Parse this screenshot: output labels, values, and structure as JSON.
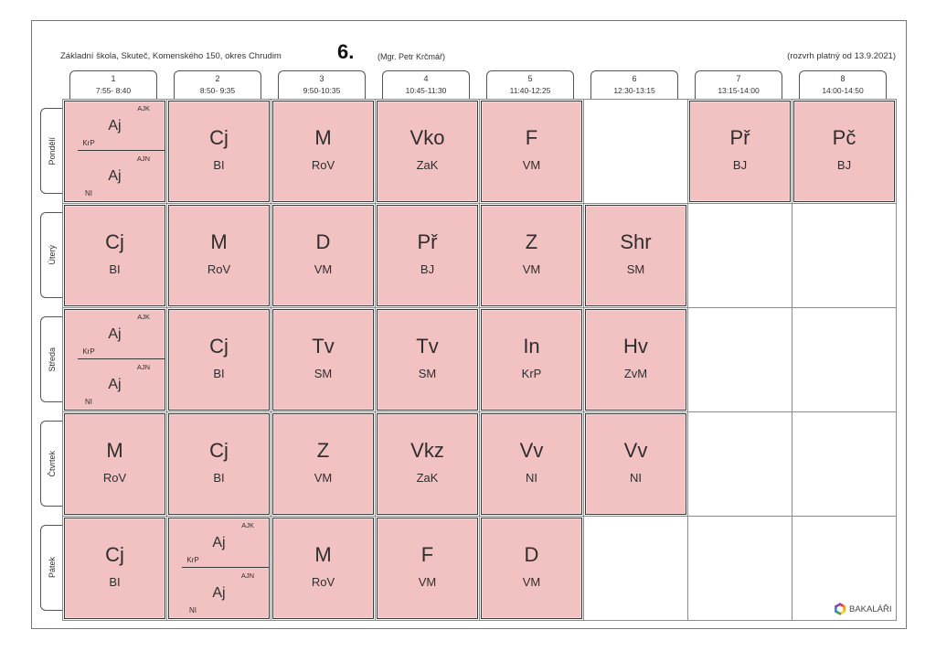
{
  "header": {
    "school": "Základní škola, Skuteč, Komenského 150, okres Chrudim",
    "class_name": "6.",
    "class_teacher": "(Mgr. Petr Krčmář)",
    "valid_from": "(rozvrh platný od 13.9.2021)"
  },
  "periods": [
    {
      "number": "1",
      "time": "7:55- 8:40"
    },
    {
      "number": "2",
      "time": "8:50- 9:35"
    },
    {
      "number": "3",
      "time": "9:50-10:35"
    },
    {
      "number": "4",
      "time": "10:45-11:30"
    },
    {
      "number": "5",
      "time": "11:40-12:25"
    },
    {
      "number": "6",
      "time": "12:30-13:15"
    },
    {
      "number": "7",
      "time": "13:15-14:00"
    },
    {
      "number": "8",
      "time": "14:00-14:50"
    }
  ],
  "days": [
    {
      "name": "Pondělí",
      "lessons": [
        {
          "split": [
            {
              "group": "AJK",
              "subject": "Aj",
              "teacher": "KrP"
            },
            {
              "group": "AJN",
              "subject": "Aj",
              "teacher": "NI"
            }
          ]
        },
        {
          "subject": "Cj",
          "teacher": "BI"
        },
        {
          "subject": "M",
          "teacher": "RoV"
        },
        {
          "subject": "Vko",
          "teacher": "ZaK"
        },
        {
          "subject": "F",
          "teacher": "VM"
        },
        null,
        {
          "subject": "Př",
          "teacher": "BJ"
        },
        {
          "subject": "Pč",
          "teacher": "BJ"
        }
      ]
    },
    {
      "name": "Úterý",
      "lessons": [
        {
          "subject": "Cj",
          "teacher": "BI"
        },
        {
          "subject": "M",
          "teacher": "RoV"
        },
        {
          "subject": "D",
          "teacher": "VM"
        },
        {
          "subject": "Př",
          "teacher": "BJ"
        },
        {
          "subject": "Z",
          "teacher": "VM"
        },
        {
          "subject": "Shr",
          "teacher": "SM"
        },
        null,
        null
      ]
    },
    {
      "name": "Středa",
      "lessons": [
        {
          "split": [
            {
              "group": "AJK",
              "subject": "Aj",
              "teacher": "KrP"
            },
            {
              "group": "AJN",
              "subject": "Aj",
              "teacher": "NI"
            }
          ]
        },
        {
          "subject": "Cj",
          "teacher": "BI"
        },
        {
          "subject": "Tv",
          "teacher": "SM"
        },
        {
          "subject": "Tv",
          "teacher": "SM"
        },
        {
          "subject": "In",
          "teacher": "KrP"
        },
        {
          "subject": "Hv",
          "teacher": "ZvM"
        },
        null,
        null
      ]
    },
    {
      "name": "Čtvrtek",
      "lessons": [
        {
          "subject": "M",
          "teacher": "RoV"
        },
        {
          "subject": "Cj",
          "teacher": "BI"
        },
        {
          "subject": "Z",
          "teacher": "VM"
        },
        {
          "subject": "Vkz",
          "teacher": "ZaK"
        },
        {
          "subject": "Vv",
          "teacher": "NI"
        },
        {
          "subject": "Vv",
          "teacher": "NI"
        },
        null,
        null
      ]
    },
    {
      "name": "Pátek",
      "lessons": [
        {
          "subject": "Cj",
          "teacher": "BI"
        },
        {
          "split": [
            {
              "group": "AJK",
              "subject": "Aj",
              "teacher": "KrP"
            },
            {
              "group": "AJN",
              "subject": "Aj",
              "teacher": "NI"
            }
          ]
        },
        {
          "subject": "M",
          "teacher": "RoV"
        },
        {
          "subject": "F",
          "teacher": "VM"
        },
        {
          "subject": "D",
          "teacher": "VM"
        },
        null,
        null,
        null
      ]
    }
  ],
  "logo": {
    "text": "BAKALÁŘI",
    "icon": "bakalari-hexagon-icon",
    "colors": [
      "#e53935",
      "#f39c12",
      "#f4d03f",
      "#43a047",
      "#1e88e5",
      "#8e44ad"
    ]
  },
  "colors": {
    "lesson_fill": "#f2c2c2",
    "lesson_border": "#3a3a3a",
    "grid_line": "#8c8c8c",
    "text": "#2e2e2e"
  }
}
